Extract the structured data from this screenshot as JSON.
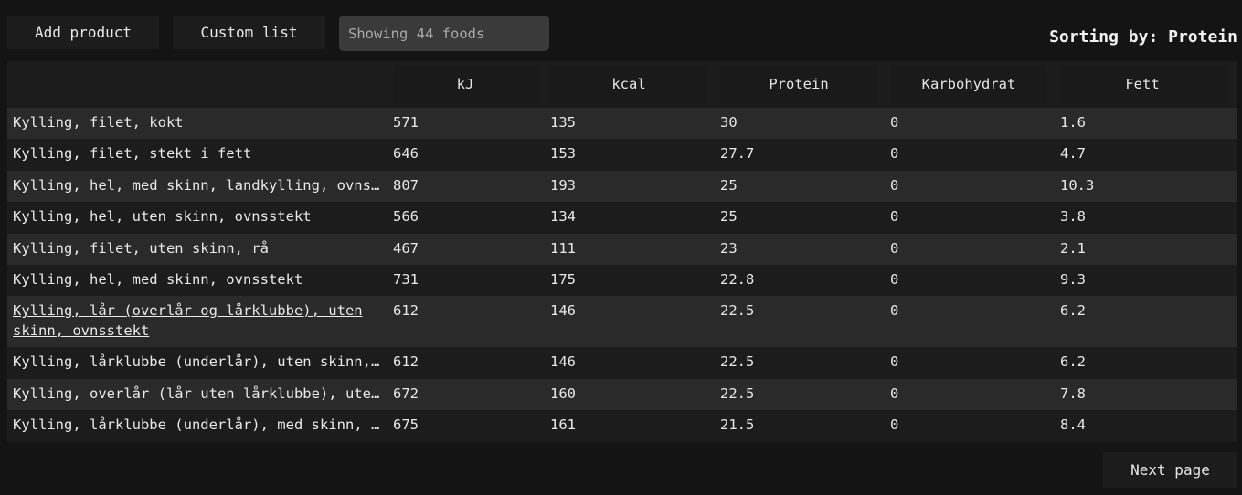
{
  "toolbar": {
    "add_label": "Add product",
    "custom_label": "Custom list",
    "search_placeholder": "Showing 44 foods",
    "sorting_text": "Sorting by: Protein"
  },
  "table": {
    "headers": [
      "",
      "kJ",
      "kcal",
      "Protein",
      "Karbohydrat",
      "Fett"
    ],
    "rows": [
      {
        "name": "Kylling, filet, kokt",
        "kj": "571",
        "kcal": "135",
        "protein": "30",
        "carbs": "0",
        "fat": "1.6"
      },
      {
        "name": "Kylling, filet, stekt i fett",
        "kj": "646",
        "kcal": "153",
        "protein": "27.7",
        "carbs": "0",
        "fat": "4.7"
      },
      {
        "name": "Kylling, hel, med skinn, landkylling, ovnsstekt",
        "kj": "807",
        "kcal": "193",
        "protein": "25",
        "carbs": "0",
        "fat": "10.3"
      },
      {
        "name": "Kylling, hel, uten skinn, ovnsstekt",
        "kj": "566",
        "kcal": "134",
        "protein": "25",
        "carbs": "0",
        "fat": "3.8"
      },
      {
        "name": "Kylling, filet, uten skinn, rå",
        "kj": "467",
        "kcal": "111",
        "protein": "23",
        "carbs": "0",
        "fat": "2.1"
      },
      {
        "name": "Kylling, hel, med skinn, ovnsstekt",
        "kj": "731",
        "kcal": "175",
        "protein": "22.8",
        "carbs": "0",
        "fat": "9.3"
      },
      {
        "name": "Kylling, lår (overlår og lårklubbe), uten skinn, ovnsstekt",
        "kj": "612",
        "kcal": "146",
        "protein": "22.5",
        "carbs": "0",
        "fat": "6.2"
      },
      {
        "name": "Kylling, lårklubbe (underlår), uten skinn, ovnsstekt",
        "kj": "612",
        "kcal": "146",
        "protein": "22.5",
        "carbs": "0",
        "fat": "6.2"
      },
      {
        "name": "Kylling, overlår (lår uten lårklubbe), uten skinn, ovnsstekt",
        "kj": "672",
        "kcal": "160",
        "protein": "22.5",
        "carbs": "0",
        "fat": "7.8"
      },
      {
        "name": "Kylling, lårklubbe (underlår), med skinn, ovnsstekt",
        "kj": "675",
        "kcal": "161",
        "protein": "21.5",
        "carbs": "0",
        "fat": "8.4"
      }
    ]
  },
  "pagination": {
    "next_label": "Next page"
  }
}
